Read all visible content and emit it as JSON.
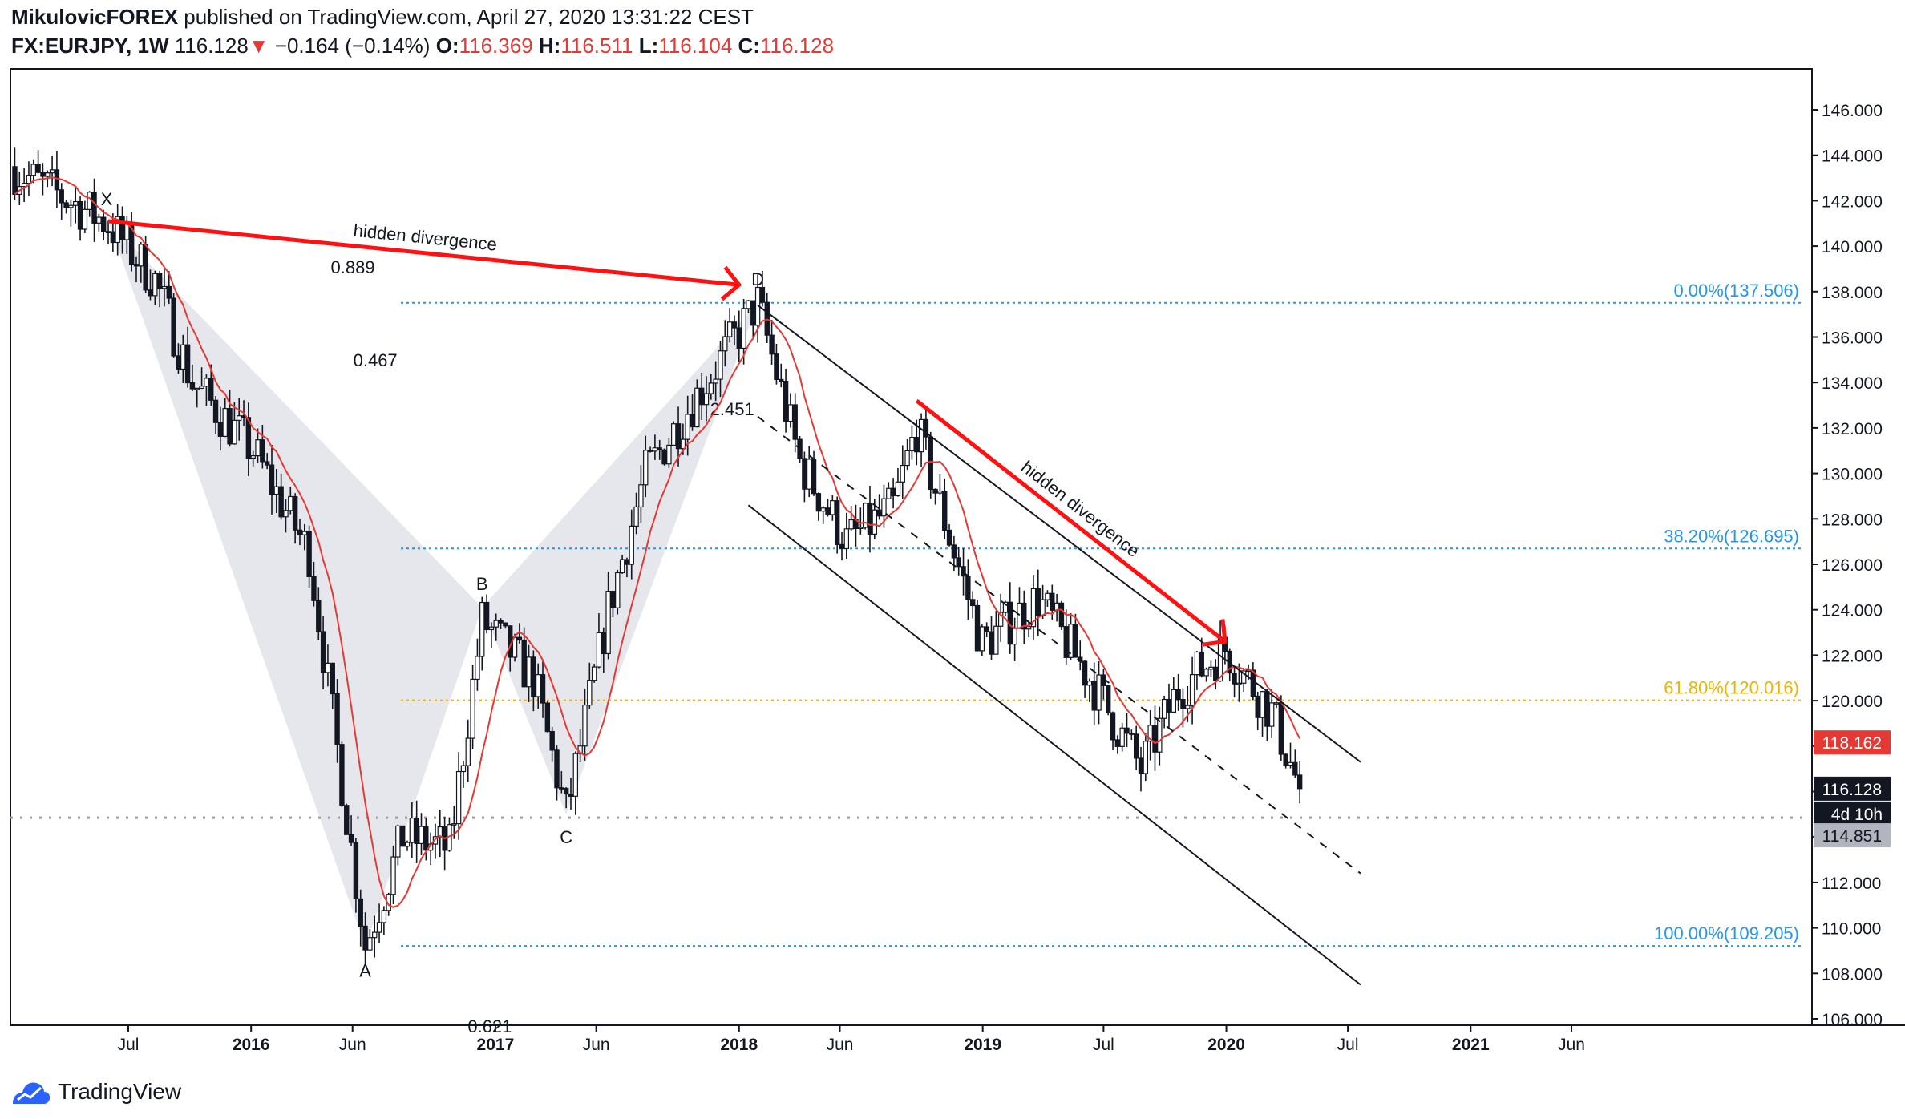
{
  "header": {
    "author": "MikulovicFOREX",
    "published_text": "published on TradingView.com, April 27, 2020 13:31:22 CEST",
    "symbol": "FX:EURJPY, 1W",
    "last": "116.128",
    "down_arrow": "▼",
    "change": "−0.164 (−0.14%)",
    "open_label": "O:",
    "open": "116.369",
    "high_label": "H:",
    "high": "116.511",
    "low_label": "L:",
    "low": "116.104",
    "close_label": "C:",
    "close": "116.128"
  },
  "footer": {
    "brand": "TradingView",
    "logo_icon": "tradingview-logo-icon"
  },
  "colors": {
    "candle": "#131722",
    "ma": "#e53935",
    "fib_blue": "#2196f3",
    "fib_gold": "#f0b400",
    "harmonic_fill": "#d1d4dc",
    "arrow": "#ff1111",
    "price_badge": "#131722",
    "ma_badge": "#e53935",
    "level_badge": "#b2b5be"
  },
  "chart_data": {
    "type": "candlestick",
    "symbol": "FX:EURJPY",
    "timeframe": "1W",
    "ylim": [
      105.5,
      148.5
    ],
    "y_ticks": [
      106,
      108,
      110,
      112,
      114,
      116,
      118,
      120,
      122,
      124,
      126,
      128,
      130,
      132,
      134,
      136,
      138,
      140,
      142,
      144,
      146
    ],
    "y_tick_labels": [
      "106.000",
      "108.000",
      "110.000",
      "112.000",
      "114.000",
      "116.000",
      "118.000",
      "120.000",
      "122.000",
      "124.000",
      "126.000",
      "128.000",
      "130.000",
      "132.000",
      "134.000",
      "136.000",
      "138.000",
      "140.000",
      "142.000",
      "144.000",
      "146.000"
    ],
    "x_ticks": [
      {
        "label": "Jul",
        "date": "2015-07"
      },
      {
        "label": "2016",
        "date": "2016-01"
      },
      {
        "label": "Jun",
        "date": "2016-06"
      },
      {
        "label": "2017",
        "date": "2017-01"
      },
      {
        "label": "Jun",
        "date": "2017-06"
      },
      {
        "label": "2018",
        "date": "2018-01"
      },
      {
        "label": "Jun",
        "date": "2018-06"
      },
      {
        "label": "2019",
        "date": "2019-01"
      },
      {
        "label": "Jul",
        "date": "2019-07"
      },
      {
        "label": "2020",
        "date": "2020-01"
      },
      {
        "label": "Jul",
        "date": "2020-07"
      },
      {
        "label": "2021",
        "date": "2021-01"
      },
      {
        "label": "Jun",
        "date": "2021-06"
      }
    ],
    "anchors": [
      {
        "date": "2015-01-05",
        "value": 143.5
      },
      {
        "date": "2015-06-01",
        "value": 141.0
      },
      {
        "date": "2015-08-10",
        "value": 138.5
      },
      {
        "date": "2015-10-05",
        "value": 134.0
      },
      {
        "date": "2016-01-04",
        "value": 131.0
      },
      {
        "date": "2016-03-28",
        "value": 126.5
      },
      {
        "date": "2016-06-20",
        "value": 109.2
      },
      {
        "date": "2016-08-15",
        "value": 114.0
      },
      {
        "date": "2016-10-24",
        "value": 113.5
      },
      {
        "date": "2016-12-12",
        "value": 123.5
      },
      {
        "date": "2017-02-27",
        "value": 121.0
      },
      {
        "date": "2017-04-17",
        "value": 115.0
      },
      {
        "date": "2017-06-19",
        "value": 124.0
      },
      {
        "date": "2017-08-14",
        "value": 130.0
      },
      {
        "date": "2017-10-09",
        "value": 132.5
      },
      {
        "date": "2018-01-29",
        "value": 137.5
      },
      {
        "date": "2018-04-02",
        "value": 130.5
      },
      {
        "date": "2018-06-11",
        "value": 127.0
      },
      {
        "date": "2018-08-20",
        "value": 128.5
      },
      {
        "date": "2018-09-24",
        "value": 132.0
      },
      {
        "date": "2018-12-31",
        "value": 122.5
      },
      {
        "date": "2019-03-25",
        "value": 124.5
      },
      {
        "date": "2019-06-10",
        "value": 121.0
      },
      {
        "date": "2019-08-26",
        "value": 117.0
      },
      {
        "date": "2019-10-21",
        "value": 120.5
      },
      {
        "date": "2019-12-30",
        "value": 122.3
      },
      {
        "date": "2020-03-09",
        "value": 119.5
      },
      {
        "date": "2020-04-20",
        "value": 116.13
      }
    ],
    "moving_average": {
      "period": 10,
      "last_value": 118.162
    },
    "harmonic_pattern": {
      "points": [
        {
          "label": "X",
          "date": "2015-06-01",
          "value": 141.1
        },
        {
          "label": "A",
          "date": "2016-06-20",
          "value": 109.2
        },
        {
          "label": "B",
          "date": "2016-12-12",
          "value": 124.1
        },
        {
          "label": "C",
          "date": "2017-04-17",
          "value": 115.0
        },
        {
          "label": "D",
          "date": "2018-01-29",
          "value": 137.5
        }
      ],
      "ratios": [
        {
          "text": "0.467"
        },
        {
          "text": "0.621"
        },
        {
          "text": "2.451"
        },
        {
          "text": "0.889"
        }
      ]
    },
    "fib_levels": [
      {
        "label": "0.00%(137.506)",
        "value": 137.506,
        "color": "blue"
      },
      {
        "label": "38.20%(126.695)",
        "value": 126.695,
        "color": "blue"
      },
      {
        "label": "61.80%(120.016)",
        "value": 120.016,
        "color": "gold"
      },
      {
        "label": "100.00%(109.205)",
        "value": 109.205,
        "color": "blue"
      }
    ],
    "channel": {
      "upper": {
        "from": {
          "date": "2018-01-29",
          "value": 137.4
        },
        "to": {
          "date": "2020-07-20",
          "value": 117.3
        }
      },
      "lower": {
        "from": {
          "date": "2018-01-29",
          "value": 127.5
        },
        "to": {
          "date": "2020-07-20",
          "value": 107.5
        }
      },
      "middle_dashed": {
        "from": {
          "date": "2018-01-29",
          "value": 132.5
        },
        "to": {
          "date": "2020-07-20",
          "value": 112.4
        }
      }
    },
    "annotations": [
      {
        "text": "hidden divergence",
        "from": {
          "date": "2015-06-01",
          "value": 141.1
        },
        "to": {
          "date": "2018-01-01",
          "value": 138.3
        }
      },
      {
        "text": "hidden divergence",
        "from": {
          "date": "2018-09-24",
          "value": 133.2
        },
        "to": {
          "date": "2019-12-30",
          "value": 122.6
        }
      }
    ],
    "horizontal_line": {
      "value": 114.851,
      "label": "114.851"
    },
    "price_badges": [
      {
        "text": "118.162",
        "value": 118.162,
        "kind": "ma"
      },
      {
        "text": "116.128",
        "value": 116.128,
        "kind": "last"
      },
      {
        "text": "4d 10h",
        "kind": "countdown"
      },
      {
        "text": "114.851",
        "value": 114.851,
        "kind": "level"
      }
    ]
  }
}
